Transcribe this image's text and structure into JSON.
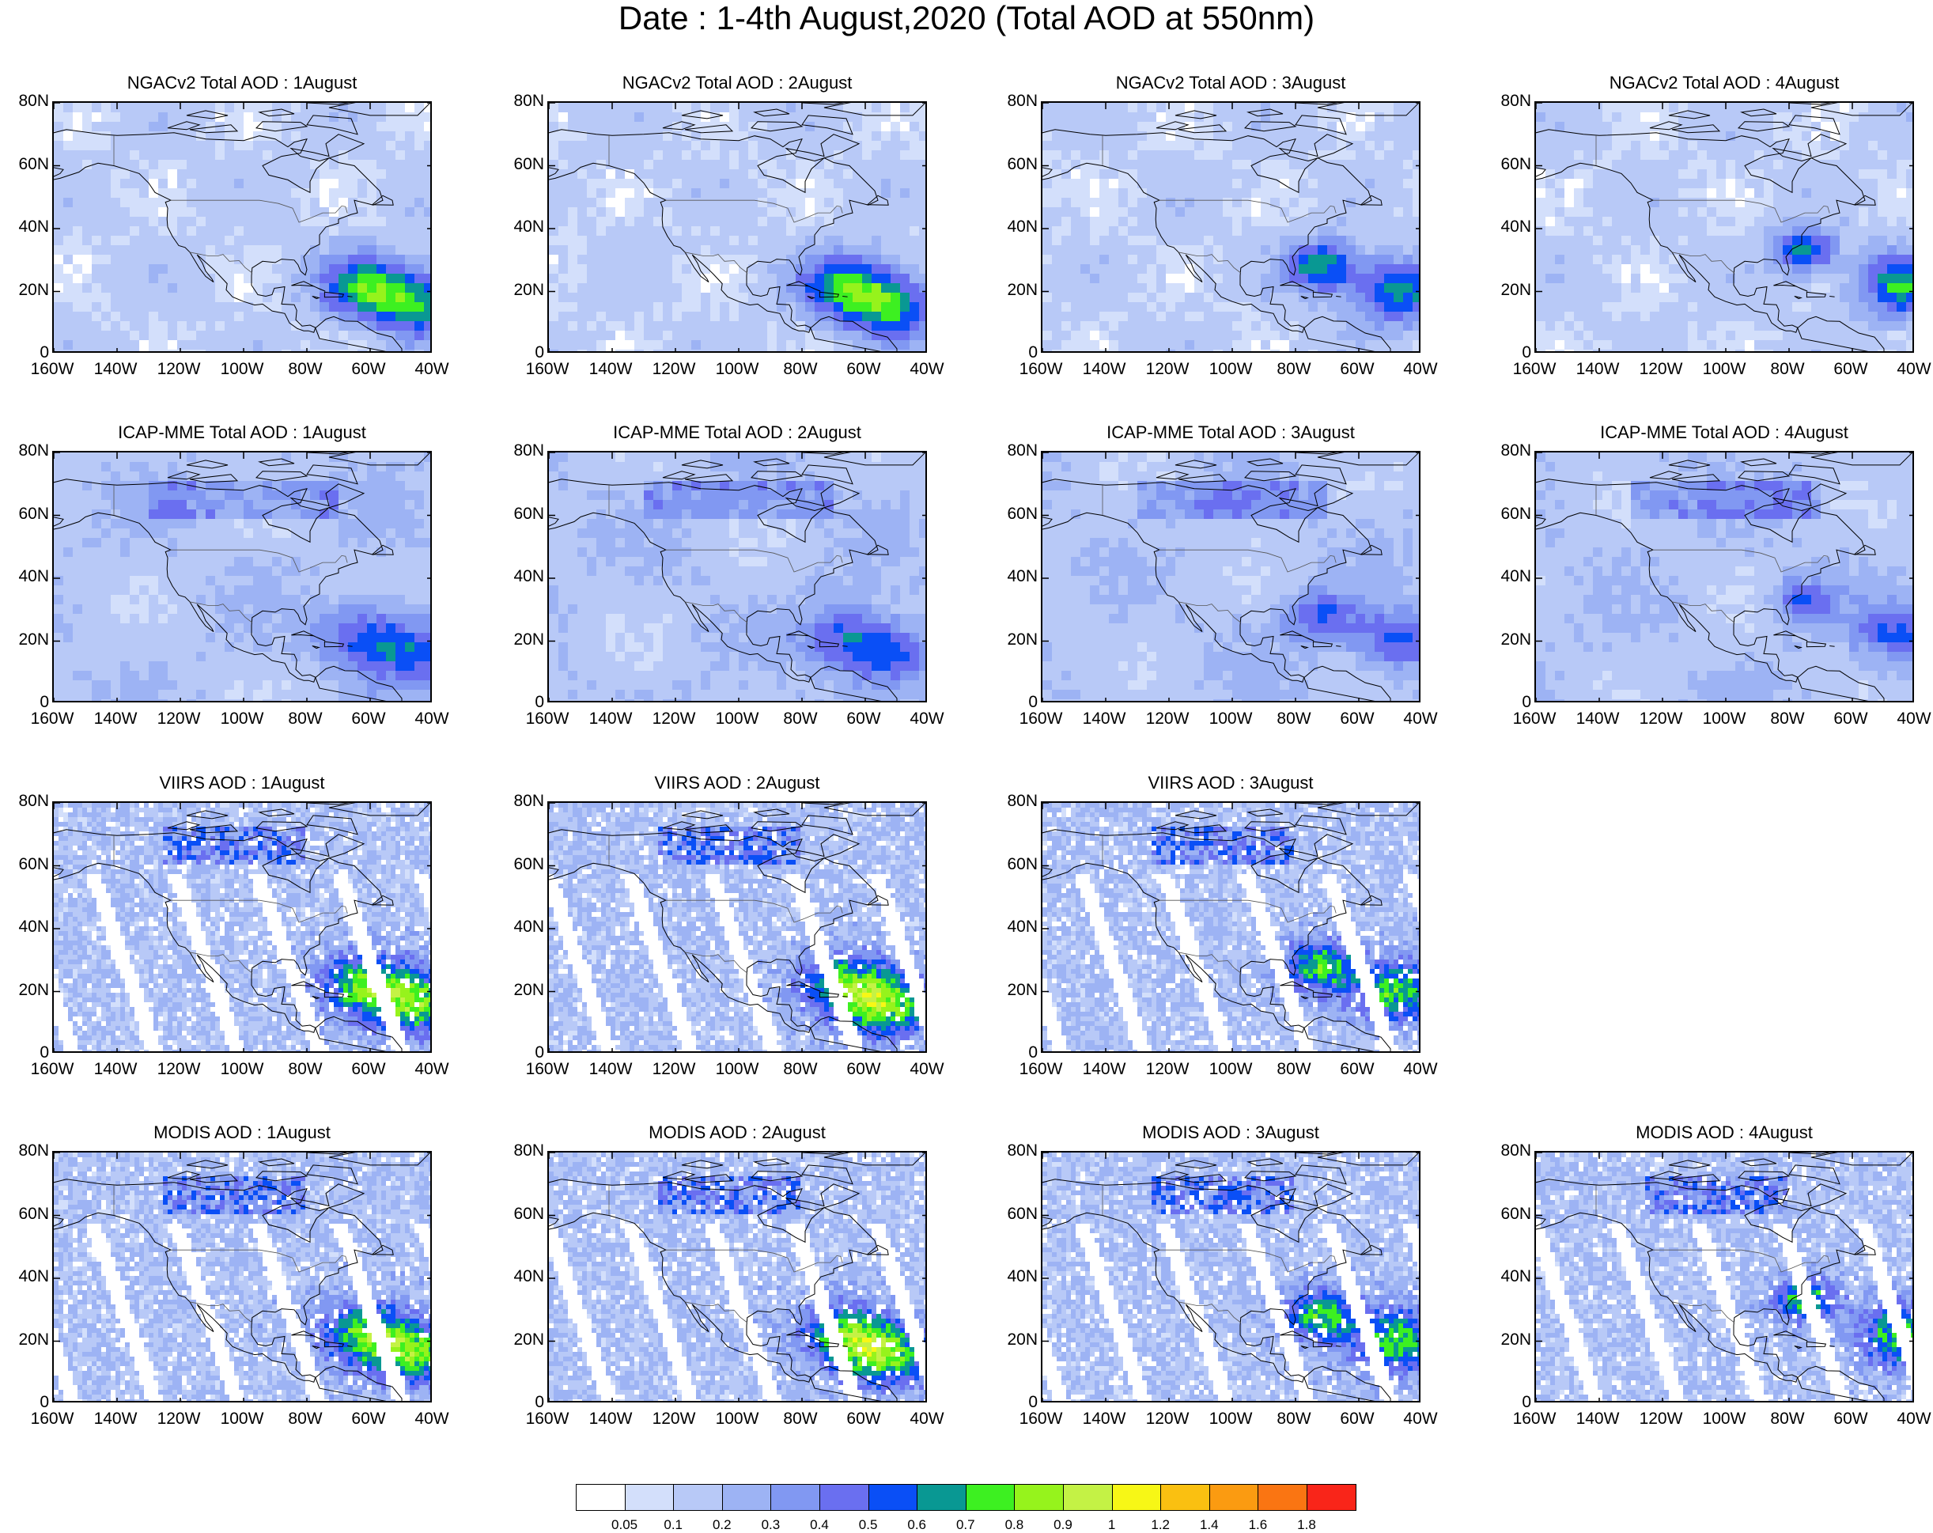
{
  "title": "Date : 1-4th August,2020 (Total AOD at 550nm)",
  "axes": {
    "y_ticks": [
      "80N",
      "60N",
      "40N",
      "20N",
      "0"
    ],
    "x_ticks": [
      "160W",
      "140W",
      "120W",
      "100W",
      "80W",
      "60W",
      "40W"
    ],
    "lon_range": [
      -160,
      -40
    ],
    "lat_range": [
      0,
      80
    ]
  },
  "panels": [
    {
      "row": 0,
      "col": 0,
      "title": "NGACv2 Total AOD : 1August",
      "product": "ngac",
      "plume": 0
    },
    {
      "row": 0,
      "col": 1,
      "title": "NGACv2 Total AOD : 2August",
      "product": "ngac",
      "plume": 1
    },
    {
      "row": 0,
      "col": 2,
      "title": "NGACv2 Total AOD : 3August",
      "product": "ngac",
      "plume": 2
    },
    {
      "row": 0,
      "col": 3,
      "title": "NGACv2 Total AOD : 4August",
      "product": "ngac",
      "plume": 3
    },
    {
      "row": 1,
      "col": 0,
      "title": "ICAP-MME Total AOD : 1August",
      "product": "icap",
      "plume": 0
    },
    {
      "row": 1,
      "col": 1,
      "title": "ICAP-MME Total AOD : 2August",
      "product": "icap",
      "plume": 1
    },
    {
      "row": 1,
      "col": 2,
      "title": "ICAP-MME Total AOD : 3August",
      "product": "icap",
      "plume": 2
    },
    {
      "row": 1,
      "col": 3,
      "title": "ICAP-MME Total AOD : 4August",
      "product": "icap",
      "plume": 3
    },
    {
      "row": 2,
      "col": 0,
      "title": "VIIRS AOD : 1August",
      "product": "viirs",
      "plume": 0
    },
    {
      "row": 2,
      "col": 1,
      "title": "VIIRS AOD : 2August",
      "product": "viirs",
      "plume": 1
    },
    {
      "row": 2,
      "col": 2,
      "title": "VIIRS AOD : 3August",
      "product": "viirs",
      "plume": 2
    },
    {
      "row": 3,
      "col": 0,
      "title": "MODIS AOD : 1August",
      "product": "modis",
      "plume": 0
    },
    {
      "row": 3,
      "col": 1,
      "title": "MODIS AOD : 2August",
      "product": "modis",
      "plume": 1
    },
    {
      "row": 3,
      "col": 2,
      "title": "MODIS AOD : 3August",
      "product": "modis",
      "plume": 2
    },
    {
      "row": 3,
      "col": 3,
      "title": "MODIS AOD : 4August",
      "product": "modis",
      "plume": 3
    }
  ],
  "colorbar": {
    "labels": [
      "0.05",
      "0.1",
      "0.2",
      "0.3",
      "0.4",
      "0.5",
      "0.6",
      "0.7",
      "0.8",
      "0.9",
      "1",
      "1.2",
      "1.4",
      "1.6",
      "1.8"
    ],
    "colors": [
      "#ffffff",
      "#d3dffb",
      "#b8c9f7",
      "#9db3f4",
      "#8198f2",
      "#6a6ff0",
      "#0a4ff6",
      "#099893",
      "#3df021",
      "#96f31c",
      "#c4f245",
      "#f7f716",
      "#fac011",
      "#fb9b11",
      "#fa7512",
      "#f92519"
    ]
  }
}
